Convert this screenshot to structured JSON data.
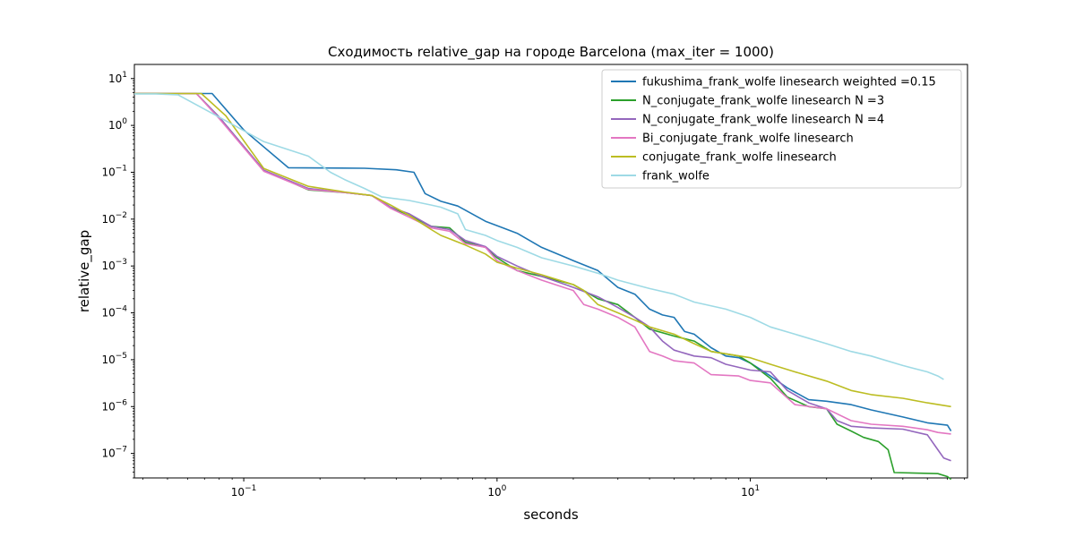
{
  "chart_data": {
    "type": "line",
    "title": "Сходимость relative_gap на городе Barcelona  (max_iter = 1000)",
    "xlabel": "seconds",
    "ylabel": "relative_gap",
    "xscale": "log",
    "yscale": "log",
    "xlim": [
      0.037,
      72
    ],
    "ylim": [
      3e-08,
      20
    ],
    "x_ticks": [
      {
        "value": 0.1,
        "base": "10",
        "exp": "−1"
      },
      {
        "value": 1,
        "base": "10",
        "exp": "0"
      },
      {
        "value": 10,
        "base": "10",
        "exp": "1"
      }
    ],
    "y_ticks": [
      {
        "value": 10,
        "base": "10",
        "exp": "1"
      },
      {
        "value": 1,
        "base": "10",
        "exp": "0"
      },
      {
        "value": 0.1,
        "base": "10",
        "exp": "−1"
      },
      {
        "value": 0.01,
        "base": "10",
        "exp": "−2"
      },
      {
        "value": 0.001,
        "base": "10",
        "exp": "−3"
      },
      {
        "value": 0.0001,
        "base": "10",
        "exp": "−4"
      },
      {
        "value": 1e-05,
        "base": "10",
        "exp": "−5"
      },
      {
        "value": 1e-06,
        "base": "10",
        "exp": "−6"
      },
      {
        "value": 1e-07,
        "base": "10",
        "exp": "−7"
      }
    ],
    "legend_position": "top-right",
    "series": [
      {
        "name": "fukushima_frank_wolfe linesearch weighted =0.15",
        "color": "#1f77b4",
        "points": [
          [
            0.037,
            4.8
          ],
          [
            0.075,
            4.8
          ],
          [
            0.1,
            0.8
          ],
          [
            0.15,
            0.125
          ],
          [
            0.3,
            0.122
          ],
          [
            0.4,
            0.113
          ],
          [
            0.47,
            0.1
          ],
          [
            0.52,
            0.035
          ],
          [
            0.6,
            0.024
          ],
          [
            0.7,
            0.019
          ],
          [
            0.9,
            0.009
          ],
          [
            1.2,
            0.005
          ],
          [
            1.5,
            0.0025
          ],
          [
            2.0,
            0.0013
          ],
          [
            2.5,
            0.0008
          ],
          [
            3.0,
            0.00035
          ],
          [
            3.5,
            0.00025
          ],
          [
            4.0,
            0.00012
          ],
          [
            4.5,
            9e-05
          ],
          [
            5.0,
            8e-05
          ],
          [
            5.5,
            4e-05
          ],
          [
            6.0,
            3.5e-05
          ],
          [
            7.0,
            1.8e-05
          ],
          [
            8.0,
            1.2e-05
          ],
          [
            9.0,
            1.1e-05
          ],
          [
            10.0,
            8.5e-06
          ],
          [
            12.0,
            4.5e-06
          ],
          [
            14.0,
            2.5e-06
          ],
          [
            17.0,
            1.4e-06
          ],
          [
            20.0,
            1.3e-06
          ],
          [
            25.0,
            1.1e-06
          ],
          [
            30.0,
            8.5e-07
          ],
          [
            40.0,
            6e-07
          ],
          [
            50.0,
            4.5e-07
          ],
          [
            60.0,
            4e-07
          ],
          [
            62.0,
            3e-07
          ]
        ]
      },
      {
        "name": "N_conjugate_frank_wolfe linesearch N =3",
        "color": "#2ca02c",
        "points": [
          [
            0.037,
            4.8
          ],
          [
            0.065,
            4.8
          ],
          [
            0.08,
            1.5
          ],
          [
            0.12,
            0.11
          ],
          [
            0.18,
            0.042
          ],
          [
            0.25,
            0.037
          ],
          [
            0.32,
            0.032
          ],
          [
            0.38,
            0.018
          ],
          [
            0.45,
            0.012
          ],
          [
            0.55,
            0.007
          ],
          [
            0.65,
            0.0065
          ],
          [
            0.75,
            0.0032
          ],
          [
            0.9,
            0.0025
          ],
          [
            1.0,
            0.0015
          ],
          [
            1.2,
            0.0008
          ],
          [
            1.5,
            0.0006
          ],
          [
            2.0,
            0.0004
          ],
          [
            2.5,
            0.0002
          ],
          [
            3.0,
            0.00015
          ],
          [
            3.5,
            8e-05
          ],
          [
            4.0,
            4.5e-05
          ],
          [
            5.0,
            3.2e-05
          ],
          [
            6.0,
            2.5e-05
          ],
          [
            7.0,
            1.5e-05
          ],
          [
            9.0,
            1.2e-05
          ],
          [
            10.0,
            8.5e-06
          ],
          [
            12.0,
            4e-06
          ],
          [
            14.0,
            1.6e-06
          ],
          [
            17.0,
            1e-06
          ],
          [
            20.0,
            9e-07
          ],
          [
            22.0,
            4.2e-07
          ],
          [
            25.0,
            3e-07
          ],
          [
            28.0,
            2.2e-07
          ],
          [
            32.0,
            1.8e-07
          ],
          [
            35.0,
            1.2e-07
          ],
          [
            37.0,
            3.9e-08
          ],
          [
            55.0,
            3.7e-08
          ],
          [
            60.0,
            3.2e-08
          ],
          [
            62.0,
            2.8e-08
          ]
        ]
      },
      {
        "name": "N_conjugate_frank_wolfe linesearch N =4",
        "color": "#9467bd",
        "points": [
          [
            0.037,
            4.8
          ],
          [
            0.065,
            4.8
          ],
          [
            0.08,
            1.5
          ],
          [
            0.12,
            0.11
          ],
          [
            0.18,
            0.045
          ],
          [
            0.25,
            0.037
          ],
          [
            0.32,
            0.032
          ],
          [
            0.38,
            0.018
          ],
          [
            0.45,
            0.013
          ],
          [
            0.55,
            0.007
          ],
          [
            0.65,
            0.006
          ],
          [
            0.75,
            0.0035
          ],
          [
            0.9,
            0.0026
          ],
          [
            1.0,
            0.0016
          ],
          [
            1.2,
            0.001
          ],
          [
            1.5,
            0.0006
          ],
          [
            2.0,
            0.00035
          ],
          [
            2.5,
            0.00022
          ],
          [
            3.0,
            0.00013
          ],
          [
            3.5,
            8e-05
          ],
          [
            4.0,
            5e-05
          ],
          [
            4.5,
            2.5e-05
          ],
          [
            5.0,
            1.6e-05
          ],
          [
            6.0,
            1.2e-05
          ],
          [
            7.0,
            1.1e-05
          ],
          [
            8.0,
            8e-06
          ],
          [
            10.0,
            6e-06
          ],
          [
            12.0,
            5.5e-06
          ],
          [
            14.0,
            2.2e-06
          ],
          [
            17.0,
            1.2e-06
          ],
          [
            20.0,
            9e-07
          ],
          [
            22.0,
            5e-07
          ],
          [
            25.0,
            3.8e-07
          ],
          [
            30.0,
            3.5e-07
          ],
          [
            40.0,
            3.3e-07
          ],
          [
            50.0,
            2.5e-07
          ],
          [
            55.0,
            1.2e-07
          ],
          [
            58.0,
            8e-08
          ],
          [
            62.0,
            7e-08
          ]
        ]
      },
      {
        "name": "Bi_conjugate_frank_wolfe linesearch",
        "color": "#e377c2",
        "points": [
          [
            0.037,
            4.8
          ],
          [
            0.065,
            4.8
          ],
          [
            0.08,
            1.4
          ],
          [
            0.12,
            0.105
          ],
          [
            0.18,
            0.043
          ],
          [
            0.25,
            0.037
          ],
          [
            0.32,
            0.032
          ],
          [
            0.38,
            0.017
          ],
          [
            0.45,
            0.011
          ],
          [
            0.55,
            0.0065
          ],
          [
            0.65,
            0.0055
          ],
          [
            0.75,
            0.003
          ],
          [
            0.9,
            0.0025
          ],
          [
            1.0,
            0.0013
          ],
          [
            1.2,
            0.0008
          ],
          [
            1.5,
            0.0005
          ],
          [
            2.0,
            0.0003
          ],
          [
            2.2,
            0.00015
          ],
          [
            2.5,
            0.00012
          ],
          [
            3.0,
            8e-05
          ],
          [
            3.5,
            5e-05
          ],
          [
            4.0,
            1.5e-05
          ],
          [
            4.5,
            1.2e-05
          ],
          [
            5.0,
            9.5e-06
          ],
          [
            6.0,
            8.5e-06
          ],
          [
            7.0,
            4.8e-06
          ],
          [
            9.0,
            4.5e-06
          ],
          [
            10.0,
            3.6e-06
          ],
          [
            12.0,
            3.2e-06
          ],
          [
            15.0,
            1.1e-06
          ],
          [
            20.0,
            9e-07
          ],
          [
            25.0,
            5e-07
          ],
          [
            30.0,
            4.2e-07
          ],
          [
            40.0,
            3.8e-07
          ],
          [
            50.0,
            3.2e-07
          ],
          [
            55.0,
            2.8e-07
          ],
          [
            62.0,
            2.6e-07
          ]
        ]
      },
      {
        "name": "conjugate_frank_wolfe linesearch",
        "color": "#bcbd22",
        "points": [
          [
            0.037,
            4.8
          ],
          [
            0.068,
            4.8
          ],
          [
            0.085,
            1.6
          ],
          [
            0.12,
            0.12
          ],
          [
            0.18,
            0.05
          ],
          [
            0.25,
            0.038
          ],
          [
            0.32,
            0.032
          ],
          [
            0.38,
            0.02
          ],
          [
            0.45,
            0.012
          ],
          [
            0.55,
            0.006
          ],
          [
            0.6,
            0.0045
          ],
          [
            0.75,
            0.0028
          ],
          [
            0.9,
            0.0018
          ],
          [
            1.0,
            0.0012
          ],
          [
            1.2,
            0.0009
          ],
          [
            1.5,
            0.00065
          ],
          [
            2.0,
            0.0004
          ],
          [
            2.2,
            0.0003
          ],
          [
            2.5,
            0.00015
          ],
          [
            3.0,
            0.0001
          ],
          [
            3.5,
            7e-05
          ],
          [
            4.0,
            5e-05
          ],
          [
            5.0,
            3.5e-05
          ],
          [
            6.0,
            2.2e-05
          ],
          [
            7.0,
            1.5e-05
          ],
          [
            10.0,
            1.1e-05
          ],
          [
            12.0,
            8e-06
          ],
          [
            15.0,
            5.5e-06
          ],
          [
            20.0,
            3.5e-06
          ],
          [
            25.0,
            2.2e-06
          ],
          [
            30.0,
            1.8e-06
          ],
          [
            40.0,
            1.5e-06
          ],
          [
            50.0,
            1.2e-06
          ],
          [
            62.0,
            1e-06
          ]
        ]
      },
      {
        "name": "frank_wolfe",
        "color": "#9edae5",
        "points": [
          [
            0.037,
            4.7
          ],
          [
            0.045,
            4.7
          ],
          [
            0.055,
            4.5
          ],
          [
            0.08,
            1.5
          ],
          [
            0.12,
            0.45
          ],
          [
            0.18,
            0.22
          ],
          [
            0.22,
            0.1
          ],
          [
            0.25,
            0.07
          ],
          [
            0.3,
            0.045
          ],
          [
            0.35,
            0.03
          ],
          [
            0.45,
            0.025
          ],
          [
            0.55,
            0.02
          ],
          [
            0.6,
            0.018
          ],
          [
            0.7,
            0.013
          ],
          [
            0.75,
            0.006
          ],
          [
            0.9,
            0.0045
          ],
          [
            1.0,
            0.0035
          ],
          [
            1.2,
            0.0025
          ],
          [
            1.5,
            0.0015
          ],
          [
            2.0,
            0.001
          ],
          [
            2.5,
            0.0007
          ],
          [
            3.0,
            0.0005
          ],
          [
            4.0,
            0.00033
          ],
          [
            5.0,
            0.00025
          ],
          [
            6.0,
            0.00017
          ],
          [
            8.0,
            0.00012
          ],
          [
            10.0,
            8e-05
          ],
          [
            12.0,
            5e-05
          ],
          [
            15.0,
            3.5e-05
          ],
          [
            20.0,
            2.2e-05
          ],
          [
            25.0,
            1.5e-05
          ],
          [
            30.0,
            1.2e-05
          ],
          [
            40.0,
            7.5e-06
          ],
          [
            50.0,
            5.5e-06
          ],
          [
            55.0,
            4.5e-06
          ],
          [
            58.0,
            3.8e-06
          ]
        ]
      }
    ]
  }
}
